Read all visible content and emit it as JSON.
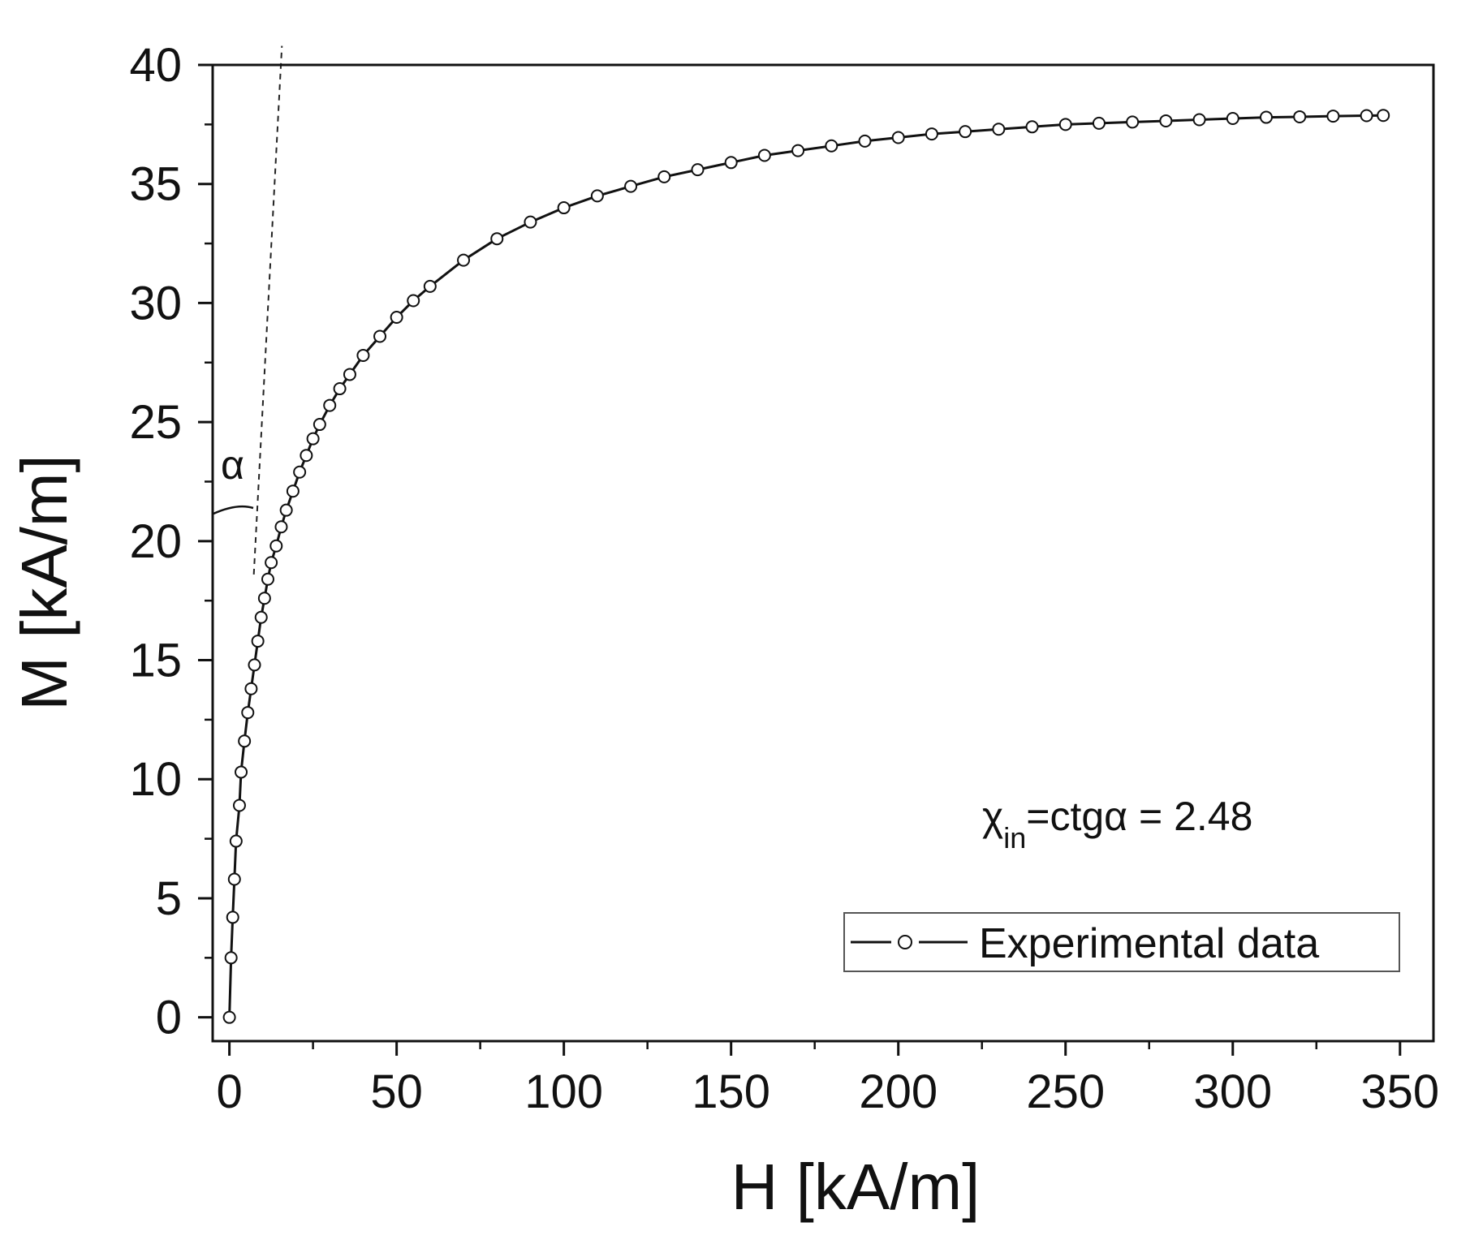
{
  "chart_data": {
    "type": "scatter",
    "title": "",
    "xlabel": "H [kA/m]",
    "ylabel": "M [kA/m]",
    "xlim": [
      -5,
      360
    ],
    "ylim": [
      -1,
      40
    ],
    "xticks": [
      0,
      50,
      100,
      150,
      200,
      250,
      300,
      350
    ],
    "yticks": [
      0,
      5,
      10,
      15,
      20,
      25,
      30,
      35,
      40
    ],
    "grid": false,
    "legend": {
      "position": "bottom-right",
      "entries": [
        "Experimental data"
      ]
    },
    "series": [
      {
        "name": "Experimental data",
        "marker": "open-circle",
        "line": "solid",
        "x": [
          0,
          0.5,
          1,
          1.5,
          2,
          3,
          3.5,
          4.5,
          5.5,
          6.5,
          7.5,
          8.5,
          9.5,
          10.5,
          11.5,
          12.5,
          14,
          15.5,
          17,
          19,
          21,
          23,
          25,
          27,
          30,
          33,
          36,
          40,
          45,
          50,
          55,
          60,
          70,
          80,
          90,
          100,
          110,
          120,
          130,
          140,
          150,
          160,
          170,
          180,
          190,
          200,
          210,
          220,
          230,
          240,
          250,
          260,
          270,
          280,
          290,
          300,
          310,
          320,
          330,
          340,
          345
        ],
        "y": [
          0,
          2.5,
          4.2,
          5.8,
          7.4,
          8.9,
          10.3,
          11.6,
          12.8,
          13.8,
          14.8,
          15.8,
          16.8,
          17.6,
          18.4,
          19.1,
          19.8,
          20.6,
          21.3,
          22.1,
          22.9,
          23.6,
          24.3,
          24.9,
          25.7,
          26.4,
          27.0,
          27.8,
          28.6,
          29.4,
          30.1,
          30.7,
          31.8,
          32.7,
          33.4,
          34.0,
          34.5,
          34.9,
          35.3,
          35.6,
          35.9,
          36.2,
          36.4,
          36.6,
          36.8,
          36.95,
          37.1,
          37.2,
          37.3,
          37.4,
          37.5,
          37.55,
          37.6,
          37.65,
          37.7,
          37.75,
          37.8,
          37.82,
          37.85,
          37.87,
          37.88
        ]
      }
    ],
    "tangent_line": {
      "style": "dashed",
      "x": [
        7.3,
        15.7
      ],
      "y": [
        18.6,
        40.8
      ]
    },
    "annotations": [
      {
        "text": "α",
        "role": "angle-label"
      },
      {
        "text_main": "χ",
        "text_sub": "in",
        "text_rest": "=ctgα = 2.48",
        "role": "susceptibility"
      }
    ]
  }
}
